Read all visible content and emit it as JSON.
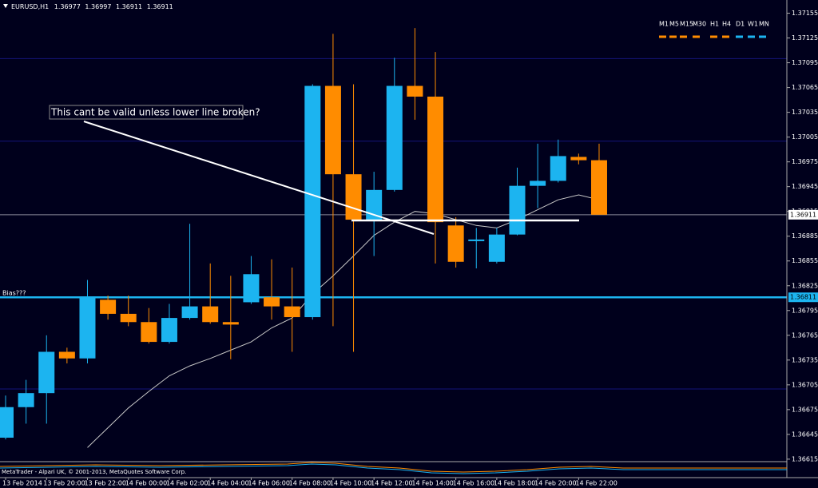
{
  "chart_data": {
    "type": "candlestick",
    "symbol": "EURUSD,H1",
    "categories": [
      "13 Feb 2014",
      null,
      "13 Feb 20:00",
      null,
      "13 Feb 22:00",
      null,
      "14 Feb 00:00",
      null,
      "14 Feb 02:00",
      null,
      "14 Feb 04:00",
      null,
      "14 Feb 06:00",
      null,
      "14 Feb 08:00",
      null,
      "14 Feb 10:00",
      null,
      "14 Feb 12:00",
      null,
      "14 Feb 14:00",
      null,
      "14 Feb 16:00",
      null,
      "14 Feb 18:00",
      null,
      "14 Feb 20:00",
      null,
      "14 Feb 22:00",
      null
    ],
    "open": [
      1.36641,
      1.36678,
      1.36695,
      1.36745,
      1.36737,
      1.36808,
      1.36791,
      1.36781,
      1.36757,
      1.36786,
      1.368,
      1.36781,
      1.36805,
      1.36811,
      1.368,
      1.36787,
      1.37067,
      1.3696,
      1.36905,
      1.36941,
      1.37067,
      1.37054,
      1.36898,
      1.36879,
      1.36854,
      1.36887,
      1.36946,
      1.36952,
      1.36981,
      1.36977
    ],
    "high": [
      1.36692,
      1.36711,
      1.36765,
      1.3675,
      1.36832,
      1.36813,
      1.36813,
      1.36798,
      1.36803,
      1.369,
      1.36852,
      1.36837,
      1.36861,
      1.36857,
      1.36847,
      1.37069,
      1.3713,
      1.37069,
      1.36963,
      1.37101,
      1.37137,
      1.37108,
      1.36908,
      1.36895,
      1.36895,
      1.36968,
      1.36997,
      1.37002,
      1.36985,
      1.36997
    ],
    "low": [
      1.36639,
      1.36658,
      1.36658,
      1.36731,
      1.36731,
      1.36784,
      1.36776,
      1.36755,
      1.36755,
      1.36784,
      1.36779,
      1.36736,
      1.36803,
      1.36784,
      1.36745,
      1.36784,
      1.36776,
      1.36745,
      1.36861,
      1.36939,
      1.37026,
      1.36852,
      1.36847,
      1.36846,
      1.36852,
      1.36886,
      1.36919,
      1.3695,
      1.36972,
      1.36911
    ],
    "close": [
      1.36678,
      1.36695,
      1.36745,
      1.36737,
      1.3681,
      1.36791,
      1.36781,
      1.36757,
      1.36786,
      1.368,
      1.36781,
      1.36778,
      1.36839,
      1.368,
      1.36787,
      1.37067,
      1.3696,
      1.36905,
      1.36941,
      1.37067,
      1.37054,
      1.36902,
      1.36854,
      1.36881,
      1.36887,
      1.36946,
      1.36952,
      1.36982,
      1.36977,
      1.36911
    ],
    "up_color": "#1cb4f0",
    "down_color": "#ff8c00",
    "ma": {
      "color": "#c8c8c8",
      "values": [
        null,
        null,
        null,
        null,
        1.36629,
        1.36653,
        1.36677,
        1.36697,
        1.36716,
        1.36728,
        1.36737,
        1.36747,
        1.36757,
        1.36774,
        1.36786,
        1.36815,
        1.36837,
        1.36861,
        1.36886,
        1.36902,
        1.36915,
        1.36912,
        1.36905,
        1.36898,
        1.36895,
        1.36905,
        1.36917,
        1.36929,
        1.36935,
        1.36929
      ]
    },
    "ylim": [
      1.36612,
      1.37171
    ],
    "yticks": [
      1.37155,
      1.37125,
      1.37095,
      1.37065,
      1.37035,
      1.37005,
      1.36975,
      1.36945,
      1.36915,
      1.36885,
      1.36855,
      1.36825,
      1.36795,
      1.36765,
      1.36735,
      1.36705,
      1.36675,
      1.36645,
      1.36615
    ],
    "grid": [
      1.371,
      1.37,
      1.367
    ],
    "bid_line": 1.36911,
    "bias_line": {
      "label": "Bias???",
      "value": 1.36811,
      "color": "#1cb4f0"
    },
    "annotation": "This cant be valid unless lower line broken?",
    "timeframes": {
      "labels": [
        "M1",
        "M5",
        "M15",
        "M30",
        "H1",
        "H4",
        "D1",
        "W1",
        "MN"
      ],
      "colors": [
        "#ff8c00",
        "#ff8c00",
        "#ff8c00",
        "#ff8c00",
        "#ff8c00",
        "#ff8c00",
        "#1cb4f0",
        "#1cb4f0",
        "#1cb4f0"
      ]
    },
    "footer": "MetaTrader - Alpari UK, © 2001-2013, MetaQuotes Software Corp."
  }
}
